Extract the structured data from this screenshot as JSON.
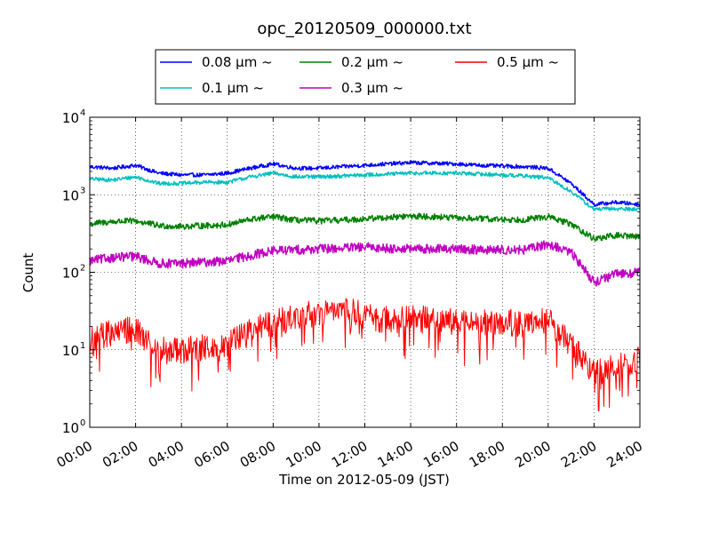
{
  "chart_data": {
    "type": "line",
    "title": "opc_20120509_000000.txt",
    "xlabel": "Time on 2012-05-09 (JST)",
    "ylabel": "Count",
    "yscale": "log",
    "xlim": [
      "00:00",
      "24:00"
    ],
    "ylim": [
      1,
      10000
    ],
    "x_ticks": [
      "00:00",
      "02:00",
      "04:00",
      "06:00",
      "08:00",
      "10:00",
      "12:00",
      "14:00",
      "16:00",
      "18:00",
      "20:00",
      "22:00",
      "24:00"
    ],
    "y_ticks": [
      {
        "value": 1,
        "base": "10",
        "exp": "0"
      },
      {
        "value": 10,
        "base": "10",
        "exp": "1"
      },
      {
        "value": 100,
        "base": "10",
        "exp": "2"
      },
      {
        "value": 1000,
        "base": "10",
        "exp": "3"
      },
      {
        "value": 10000,
        "base": "10",
        "exp": "4"
      }
    ],
    "grid": true,
    "legend_position": "top-center",
    "series": [
      {
        "name": "0.08 μm ~",
        "color": "#0000ff",
        "x": [
          "00:00",
          "01:00",
          "02:00",
          "03:00",
          "04:00",
          "05:00",
          "06:00",
          "07:00",
          "08:00",
          "09:00",
          "10:00",
          "11:00",
          "12:00",
          "13:00",
          "14:00",
          "15:00",
          "16:00",
          "17:00",
          "18:00",
          "19:00",
          "20:00",
          "21:00",
          "22:00",
          "23:00",
          "24:00"
        ],
        "y": [
          2300,
          2200,
          2400,
          1900,
          1800,
          1800,
          1900,
          2200,
          2500,
          2200,
          2200,
          2300,
          2400,
          2500,
          2600,
          2550,
          2500,
          2400,
          2350,
          2300,
          2200,
          1400,
          750,
          800,
          750
        ]
      },
      {
        "name": "0.1 μm ~",
        "color": "#00bfbf",
        "x": [
          "00:00",
          "01:00",
          "02:00",
          "03:00",
          "04:00",
          "05:00",
          "06:00",
          "07:00",
          "08:00",
          "09:00",
          "10:00",
          "11:00",
          "12:00",
          "13:00",
          "14:00",
          "15:00",
          "16:00",
          "17:00",
          "18:00",
          "19:00",
          "20:00",
          "21:00",
          "22:00",
          "23:00",
          "24:00"
        ],
        "y": [
          1600,
          1550,
          1700,
          1400,
          1400,
          1450,
          1450,
          1700,
          1900,
          1700,
          1700,
          1750,
          1800,
          1850,
          1900,
          1900,
          1900,
          1850,
          1800,
          1750,
          1650,
          1100,
          650,
          660,
          650
        ]
      },
      {
        "name": "0.2 μm ~",
        "color": "#008000",
        "x": [
          "00:00",
          "01:00",
          "02:00",
          "03:00",
          "04:00",
          "05:00",
          "06:00",
          "07:00",
          "08:00",
          "09:00",
          "10:00",
          "11:00",
          "12:00",
          "13:00",
          "14:00",
          "15:00",
          "16:00",
          "17:00",
          "18:00",
          "19:00",
          "20:00",
          "21:00",
          "22:00",
          "23:00",
          "24:00"
        ],
        "y": [
          420,
          450,
          460,
          400,
          390,
          400,
          410,
          480,
          520,
          470,
          460,
          470,
          490,
          510,
          530,
          520,
          500,
          490,
          480,
          480,
          520,
          420,
          270,
          300,
          290
        ]
      },
      {
        "name": "0.3 μm ~",
        "color": "#bf00bf",
        "x": [
          "00:00",
          "01:00",
          "02:00",
          "03:00",
          "04:00",
          "05:00",
          "06:00",
          "07:00",
          "08:00",
          "09:00",
          "10:00",
          "11:00",
          "12:00",
          "13:00",
          "14:00",
          "15:00",
          "16:00",
          "17:00",
          "18:00",
          "19:00",
          "20:00",
          "21:00",
          "22:00",
          "23:00",
          "24:00"
        ],
        "y": [
          140,
          155,
          160,
          130,
          130,
          135,
          140,
          165,
          190,
          195,
          200,
          205,
          210,
          205,
          200,
          200,
          200,
          195,
          195,
          195,
          230,
          180,
          75,
          95,
          100
        ]
      },
      {
        "name": "0.5 μm ~",
        "color": "#ff0000",
        "x": [
          "00:00",
          "01:00",
          "02:00",
          "03:00",
          "04:00",
          "05:00",
          "06:00",
          "07:00",
          "08:00",
          "09:00",
          "10:00",
          "11:00",
          "12:00",
          "13:00",
          "14:00",
          "15:00",
          "16:00",
          "17:00",
          "18:00",
          "19:00",
          "20:00",
          "21:00",
          "22:00",
          "23:00",
          "24:00"
        ],
        "y": [
          13,
          17,
          18,
          11,
          10,
          11,
          12,
          17,
          22,
          28,
          30,
          32,
          28,
          24,
          25,
          24,
          23,
          22,
          22,
          22,
          24,
          12,
          5,
          6,
          8
        ]
      }
    ]
  }
}
